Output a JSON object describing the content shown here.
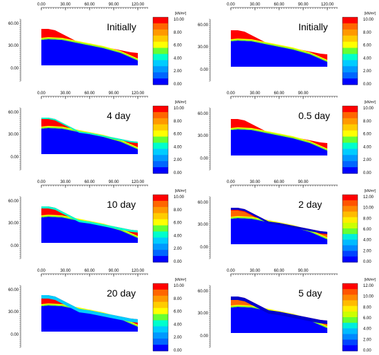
{
  "colorbar_unit": "[kN/m²]",
  "colorbar_colors_10": [
    "#0000ff",
    "#0066ff",
    "#0099ff",
    "#00ccff",
    "#00ffcc",
    "#66ff33",
    "#ffff00",
    "#ffcc00",
    "#ff9900",
    "#ff6600",
    "#ff0000"
  ],
  "colorbar_colors_12": [
    "#0000ff",
    "#0044ff",
    "#0088ff",
    "#00bbff",
    "#00eedd",
    "#66ff33",
    "#ccff00",
    "#ffee00",
    "#ffbb00",
    "#ff8800",
    "#ff5500",
    "#ff0000"
  ],
  "colors": {
    "core": "#0000ff",
    "front": "#ffff00",
    "wet": "#ff0000",
    "rise": "#00ffcc",
    "dark": "#0000cc",
    "mid": "#ff6600"
  },
  "chart_data": [
    {
      "type": "heatmap",
      "label": "Initially",
      "x_ticks": [
        "0.00",
        "30.00",
        "60.00",
        "90.00",
        "120.00"
      ],
      "y_ticks": [
        "60.00",
        "30.00",
        "0.00"
      ],
      "colorbar_ticks": [
        "10.00",
        "8.00",
        "6.00",
        "4.00",
        "2.00",
        "0.00"
      ],
      "cb_levels": 10,
      "surface_band": "none"
    },
    {
      "type": "heatmap",
      "label": "Initially",
      "x_ticks": [
        "0.00",
        "30.00",
        "60.00",
        "90.00",
        "120.00"
      ],
      "y_ticks": [
        "60.00",
        "30.00",
        "0.00"
      ],
      "colorbar_ticks": [
        "10.00",
        "8.00",
        "6.00",
        "4.00",
        "2.00",
        "0.00"
      ],
      "cb_levels": 10,
      "surface_band": "none"
    },
    {
      "type": "heatmap",
      "label": "4 day",
      "x_ticks": [
        "0.00",
        "30.00",
        "60.00",
        "90.00",
        "120.00"
      ],
      "y_ticks": [
        "60.00",
        "30.00",
        "0.00"
      ],
      "colorbar_ticks": [
        "10.00",
        "8.00",
        "6.00",
        "4.00",
        "2.00",
        "0.00"
      ],
      "cb_levels": 10,
      "surface_band": "thin-cyan"
    },
    {
      "type": "heatmap",
      "label": "0.5 day",
      "x_ticks": [
        "0.00",
        "30.00",
        "60.00",
        "90.00"
      ],
      "y_ticks": [
        "60.00",
        "30.00",
        "0.00"
      ],
      "colorbar_ticks": [
        "10.00",
        "8.00",
        "6.00",
        "4.00",
        "2.00",
        "0.00"
      ],
      "cb_levels": 10,
      "surface_band": "none"
    },
    {
      "type": "heatmap",
      "label": "10 day",
      "x_ticks": [
        "0.00",
        "30.00",
        "60.00",
        "90.00",
        "120.00"
      ],
      "y_ticks": [
        "60.00",
        "30.00",
        "0.00"
      ],
      "colorbar_ticks": [
        "10.00",
        "8.00",
        "6.00",
        "4.00",
        "2.00",
        "0.00"
      ],
      "cb_levels": 10,
      "surface_band": "cyan"
    },
    {
      "type": "heatmap",
      "label": "2 day",
      "x_ticks": [
        "0.00",
        "30.00",
        "60.00",
        "90.00"
      ],
      "y_ticks": [
        "60.00",
        "30.00",
        "0.00"
      ],
      "colorbar_ticks": [
        "12.00",
        "10.00",
        "8.00",
        "6.00",
        "4.00",
        "2.00",
        "0.00"
      ],
      "cb_levels": 12,
      "surface_band": "dark-blue"
    },
    {
      "type": "heatmap",
      "label": "20 day",
      "x_ticks": [
        "0.00",
        "30.00",
        "60.00",
        "90.00",
        "120.00"
      ],
      "y_ticks": [
        "60.00",
        "30.00",
        "0.00"
      ],
      "colorbar_ticks": [
        "10.00",
        "8.00",
        "6.00",
        "4.00",
        "2.00",
        "0.00"
      ],
      "cb_levels": 10,
      "surface_band": "thick-cyan"
    },
    {
      "type": "heatmap",
      "label": "5 day",
      "x_ticks": [
        "0.00",
        "30.00",
        "60.00",
        "90.00"
      ],
      "y_ticks": [
        "60.00",
        "30.00",
        "0.00"
      ],
      "colorbar_ticks": [
        "12.00",
        "10.00",
        "8.00",
        "6.00",
        "4.00",
        "2.00",
        "0.00"
      ],
      "cb_levels": 12,
      "surface_band": "thick-dark-blue"
    }
  ]
}
